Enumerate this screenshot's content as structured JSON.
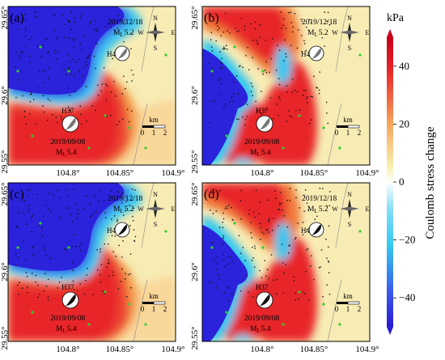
{
  "panels": [
    {
      "letter": "(a)",
      "eq_top": {
        "date": "2019/12/18",
        "mag": "M",
        "mag_sub": "L",
        "mag_val": "5.2",
        "id": "H42"
      },
      "eq_bot": {
        "date": "2019/09/08",
        "mag": "M",
        "mag_sub": "L",
        "mag_val": "5.4",
        "id": "H37"
      },
      "ball_tone": "gray"
    },
    {
      "letter": "(b)",
      "eq_top": {
        "date": "2019/12/18",
        "mag": "M",
        "mag_sub": "L",
        "mag_val": "5.2",
        "id": "H42"
      },
      "eq_bot": {
        "date": "2019/09/08",
        "mag": "M",
        "mag_sub": "L",
        "mag_val": "5.4",
        "id": "H37"
      },
      "ball_tone": "gray"
    },
    {
      "letter": "(c)",
      "eq_top": {
        "date": "2019/12/18",
        "mag": "M",
        "mag_sub": "L",
        "mag_val": "5.2",
        "id": "H42"
      },
      "eq_bot": {
        "date": "2019/09/08",
        "mag": "M",
        "mag_sub": "L",
        "mag_val": "5.4",
        "id": "H37"
      },
      "ball_tone": "black"
    },
    {
      "letter": "(d)",
      "eq_top": {
        "date": "2019/12/18",
        "mag": "M",
        "mag_sub": "L",
        "mag_val": "5.2",
        "id": "H42"
      },
      "eq_bot": {
        "date": "2019/09/08",
        "mag": "M",
        "mag_sub": "L",
        "mag_val": "5.4",
        "id": "H37"
      },
      "ball_tone": "black"
    }
  ],
  "axes": {
    "y_ticks": [
      "29.65°",
      "29.6°",
      "29.55°"
    ],
    "x_ticks": [
      "104.8°",
      "104.85°",
      "104.9°"
    ]
  },
  "compass": {
    "n": "N",
    "e": "E",
    "s": "S",
    "w": "W"
  },
  "scale_bar": {
    "unit": "km",
    "ticks": [
      "0",
      "1",
      "2"
    ]
  },
  "colorbar": {
    "unit": "kPa",
    "label": "Coulomb stress change",
    "ticks": [
      "40",
      "20",
      "0",
      "−20",
      "−40"
    ],
    "tick_values": [
      40,
      20,
      0,
      -20,
      -40
    ],
    "range": [
      -50,
      50
    ]
  },
  "colors": {
    "red": "#e8282a",
    "orange": "#f5a55c",
    "yellow": "#f7f2b0",
    "cyan": "#36c8f0",
    "blue": "#2a2ae0"
  }
}
